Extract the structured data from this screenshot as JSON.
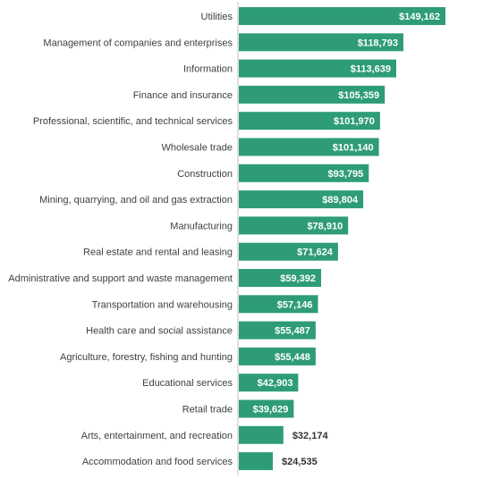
{
  "chart_data": {
    "type": "bar",
    "orientation": "horizontal",
    "categories": [
      "Utilities",
      "Management of companies and enterprises",
      "Information",
      "Finance and insurance",
      "Professional, scientific, and technical services",
      "Wholesale trade",
      "Construction",
      "Mining, quarrying, and oil and gas extraction",
      "Manufacturing",
      "Real estate and rental and leasing",
      "Administrative and support and waste management",
      "Transportation and warehousing",
      "Health care and social assistance",
      "Agriculture, forestry, fishing and hunting",
      "Educational services",
      "Retail trade",
      "Arts, entertainment, and recreation",
      "Accommodation and food services"
    ],
    "values": [
      149162,
      118793,
      113639,
      105359,
      101970,
      101140,
      93795,
      89804,
      78910,
      71624,
      59392,
      57146,
      55487,
      55448,
      42903,
      39629,
      32174,
      24535
    ],
    "value_labels": [
      "$149,162",
      "$118,793",
      "$113,639",
      "$105,359",
      "$101,970",
      "$101,140",
      "$93,795",
      "$89,804",
      "$78,910",
      "$71,624",
      "$59,392",
      "$57,146",
      "$55,487",
      "$55,448",
      "$42,903",
      "$39,629",
      "$32,174",
      "$24,535"
    ],
    "title": "",
    "xlabel": "",
    "ylabel": "",
    "xlim": [
      0,
      160000
    ],
    "grid": false,
    "legend": "none",
    "colors": {
      "bar": "#2e9c77",
      "axis": "#bfbfbf",
      "label_inside": "#ffffff",
      "label_outside": "#333333",
      "category_text": "#404040"
    }
  }
}
